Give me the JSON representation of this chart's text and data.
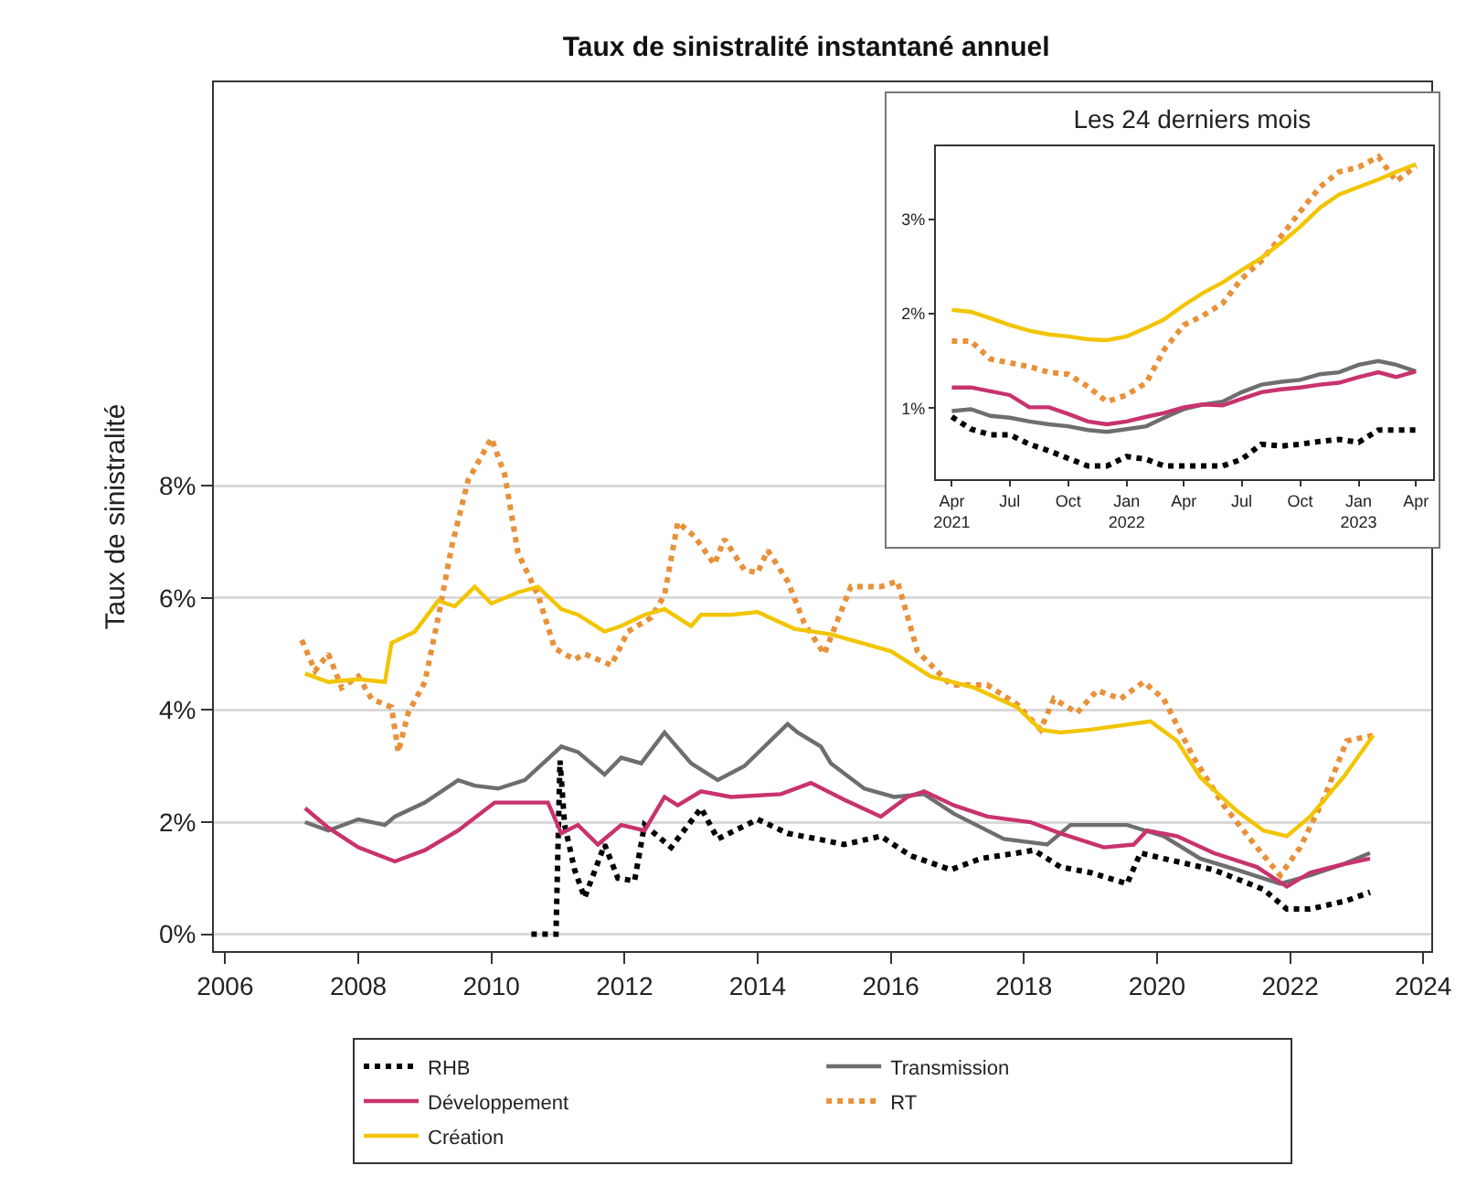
{
  "chart_data": [
    {
      "type": "line",
      "title": "Taux de sinistralité instantané annuel",
      "ylabel": "Taux de sinistralité",
      "xlim": [
        2005.83,
        2024.12
      ],
      "xticks": [
        2006,
        2008,
        2010,
        2012,
        2014,
        2016,
        2018,
        2020,
        2022,
        2024
      ],
      "ylim": [
        -0.3,
        15.2
      ],
      "yticks": [
        {
          "value": 0,
          "label": "0%"
        },
        {
          "value": 2,
          "label": "2%"
        },
        {
          "value": 4,
          "label": "4%"
        },
        {
          "value": 6,
          "label": "6%"
        },
        {
          "value": 8,
          "label": "8%"
        }
      ],
      "grid": "y",
      "legend": "bottom",
      "series": [
        {
          "name": "RHB",
          "color": "#000000",
          "line_style": "dotted",
          "x": [
            2010.6,
            2010.97,
            2011.03,
            2011.1,
            2011.25,
            2011.4,
            2011.7,
            2011.9,
            2012.15,
            2012.3,
            2012.7,
            2013.15,
            2013.4,
            2014.0,
            2014.45,
            2014.9,
            2015.3,
            2015.85,
            2016.3,
            2016.9,
            2017.35,
            2017.9,
            2018.15,
            2018.55,
            2019.0,
            2019.55,
            2019.75,
            2020.1,
            2020.85,
            2021.6,
            2021.95,
            2022.3,
            2022.85,
            2023.2
          ],
          "values": [
            0.0,
            0.0,
            3.1,
            1.95,
            1.15,
            0.65,
            1.6,
            1.0,
            0.95,
            1.95,
            1.55,
            2.25,
            1.7,
            2.05,
            1.8,
            1.7,
            1.6,
            1.75,
            1.4,
            1.15,
            1.35,
            1.45,
            1.5,
            1.2,
            1.1,
            0.9,
            1.45,
            1.35,
            1.15,
            0.8,
            0.45,
            0.45,
            0.6,
            0.75
          ]
        },
        {
          "name": "Transmission",
          "color": "#6e6e6e",
          "line_style": "solid",
          "x": [
            2007.2,
            2007.55,
            2008.0,
            2008.4,
            2008.55,
            2009.0,
            2009.5,
            2009.75,
            2010.1,
            2010.5,
            2011.05,
            2011.3,
            2011.7,
            2011.95,
            2012.25,
            2012.6,
            2013.0,
            2013.4,
            2013.8,
            2014.45,
            2014.6,
            2014.95,
            2015.1,
            2015.6,
            2016.05,
            2016.5,
            2016.95,
            2017.7,
            2018.35,
            2018.7,
            2019.55,
            2020.1,
            2020.65,
            2021.2,
            2021.85,
            2022.3,
            2022.8,
            2023.2
          ],
          "values": [
            2.0,
            1.85,
            2.05,
            1.95,
            2.1,
            2.35,
            2.75,
            2.65,
            2.6,
            2.75,
            3.35,
            3.25,
            2.85,
            3.15,
            3.05,
            3.6,
            3.05,
            2.75,
            3.0,
            3.75,
            3.6,
            3.35,
            3.05,
            2.6,
            2.45,
            2.5,
            2.15,
            1.7,
            1.6,
            1.95,
            1.95,
            1.75,
            1.35,
            1.15,
            0.9,
            1.05,
            1.25,
            1.45
          ]
        },
        {
          "name": "Développement",
          "color": "#c8336e",
          "line_style": "solid",
          "x": [
            2007.2,
            2007.55,
            2008.0,
            2008.55,
            2009.0,
            2009.5,
            2010.05,
            2010.85,
            2011.05,
            2011.3,
            2011.6,
            2011.95,
            2012.3,
            2012.6,
            2012.8,
            2013.15,
            2013.6,
            2014.35,
            2014.8,
            2015.3,
            2015.85,
            2016.25,
            2016.5,
            2016.95,
            2017.45,
            2018.1,
            2018.55,
            2019.2,
            2019.65,
            2019.85,
            2020.3,
            2020.85,
            2021.5,
            2021.95,
            2022.3,
            2022.8,
            2023.2
          ],
          "values": [
            2.25,
            1.9,
            1.55,
            1.3,
            1.5,
            1.85,
            2.35,
            2.35,
            1.8,
            1.95,
            1.6,
            1.95,
            1.85,
            2.45,
            2.3,
            2.55,
            2.45,
            2.5,
            2.7,
            2.4,
            2.1,
            2.45,
            2.55,
            2.3,
            2.1,
            2.0,
            1.8,
            1.55,
            1.6,
            1.85,
            1.75,
            1.45,
            1.2,
            0.85,
            1.1,
            1.25,
            1.35
          ]
        },
        {
          "name": "RT",
          "color": "#e8913a",
          "line_style": "dotted",
          "x": [
            2007.15,
            2007.35,
            2007.55,
            2007.75,
            2008.0,
            2008.2,
            2008.5,
            2008.6,
            2008.75,
            2009.0,
            2009.2,
            2009.4,
            2009.65,
            2010.0,
            2010.2,
            2010.4,
            2010.7,
            2010.95,
            2011.25,
            2011.4,
            2011.8,
            2012.05,
            2012.4,
            2012.6,
            2012.8,
            2013.05,
            2013.35,
            2013.5,
            2013.8,
            2014.0,
            2014.15,
            2014.45,
            2014.7,
            2015.0,
            2015.4,
            2015.85,
            2016.1,
            2016.4,
            2016.9,
            2017.45,
            2017.9,
            2018.25,
            2018.45,
            2018.8,
            2019.1,
            2019.45,
            2019.8,
            2020.1,
            2020.55,
            2021.0,
            2021.5,
            2021.85,
            2022.15,
            2022.5,
            2022.85,
            2023.25
          ],
          "values": [
            5.25,
            4.7,
            5.0,
            4.4,
            4.6,
            4.2,
            4.05,
            3.25,
            3.95,
            4.5,
            5.65,
            6.9,
            8.1,
            8.85,
            8.2,
            6.8,
            6.05,
            5.1,
            4.9,
            5.0,
            4.8,
            5.4,
            5.65,
            6.05,
            7.35,
            7.1,
            6.6,
            7.05,
            6.5,
            6.45,
            6.85,
            6.3,
            5.55,
            5.0,
            6.2,
            6.2,
            6.3,
            5.05,
            4.45,
            4.45,
            4.1,
            3.65,
            4.2,
            3.95,
            4.35,
            4.2,
            4.5,
            4.2,
            3.15,
            2.3,
            1.55,
            1.05,
            1.55,
            2.4,
            3.45,
            3.55
          ]
        },
        {
          "name": "Création",
          "color": "#f2c500",
          "line_style": "solid",
          "x": [
            2007.2,
            2007.55,
            2008.0,
            2008.4,
            2008.5,
            2008.85,
            2009.2,
            2009.45,
            2009.75,
            2010.0,
            2010.4,
            2010.7,
            2011.05,
            2011.3,
            2011.7,
            2011.95,
            2012.3,
            2012.6,
            2013.0,
            2013.15,
            2013.6,
            2014.0,
            2014.55,
            2015.1,
            2016.0,
            2016.6,
            2017.25,
            2017.9,
            2018.25,
            2018.55,
            2019.0,
            2019.9,
            2020.3,
            2020.65,
            2021.2,
            2021.6,
            2021.95,
            2022.3,
            2022.8,
            2023.25
          ],
          "values": [
            4.65,
            4.5,
            4.55,
            4.5,
            5.2,
            5.4,
            5.95,
            5.85,
            6.2,
            5.9,
            6.1,
            6.2,
            5.8,
            5.7,
            5.4,
            5.5,
            5.7,
            5.8,
            5.5,
            5.7,
            5.7,
            5.75,
            5.45,
            5.35,
            5.05,
            4.6,
            4.4,
            4.05,
            3.65,
            3.6,
            3.65,
            3.8,
            3.45,
            2.8,
            2.2,
            1.85,
            1.75,
            2.1,
            2.8,
            3.55
          ]
        }
      ]
    },
    {
      "type": "line",
      "title": "Les 24 derniers mois",
      "x": [
        "2021-04",
        "2021-05",
        "2021-06",
        "2021-07",
        "2021-08",
        "2021-09",
        "2021-10",
        "2021-11",
        "2021-12",
        "2022-01",
        "2022-02",
        "2022-03",
        "2022-04",
        "2022-05",
        "2022-06",
        "2022-07",
        "2022-08",
        "2022-09",
        "2022-10",
        "2022-11",
        "2022-12",
        "2023-01",
        "2023-02",
        "2023-03",
        "2023-04"
      ],
      "xlim": [
        "2021-03-07",
        "2023-04-28"
      ],
      "xticks": [
        {
          "value": "2021-04",
          "label": "Apr\n2021"
        },
        {
          "value": "2021-07",
          "label": "Jul"
        },
        {
          "value": "2021-10",
          "label": "Oct"
        },
        {
          "value": "2022-01",
          "label": "Jan\n2022"
        },
        {
          "value": "2022-04",
          "label": "Apr"
        },
        {
          "value": "2022-07",
          "label": "Jul"
        },
        {
          "value": "2022-10",
          "label": "Oct"
        },
        {
          "value": "2023-01",
          "label": "Jan\n2023"
        },
        {
          "value": "2023-04",
          "label": "Apr"
        }
      ],
      "ylim": [
        0.25,
        3.77
      ],
      "yticks": [
        {
          "value": 1,
          "label": "1%"
        },
        {
          "value": 2,
          "label": "2%"
        },
        {
          "value": 3,
          "label": "3%"
        }
      ],
      "series": [
        {
          "color": "#000000",
          "line_style": "dotted",
          "values": [
            0.91,
            0.78,
            0.72,
            0.72,
            0.62,
            0.55,
            0.47,
            0.39,
            0.39,
            0.49,
            0.46,
            0.39,
            0.39,
            0.39,
            0.39,
            0.46,
            0.62,
            0.6,
            0.62,
            0.65,
            0.67,
            0.64,
            0.77,
            0.77,
            0.77
          ]
        },
        {
          "color": "#6e6e6e",
          "line_style": "solid",
          "values": [
            0.97,
            0.99,
            0.92,
            0.9,
            0.86,
            0.83,
            0.81,
            0.77,
            0.75,
            0.78,
            0.81,
            0.9,
            0.99,
            1.04,
            1.07,
            1.17,
            1.25,
            1.28,
            1.3,
            1.36,
            1.38,
            1.46,
            1.5,
            1.46,
            1.39
          ]
        },
        {
          "color": "#c8336e",
          "line_style": "solid",
          "values": [
            1.22,
            1.22,
            1.18,
            1.14,
            1.01,
            1.01,
            0.94,
            0.86,
            0.83,
            0.86,
            0.91,
            0.95,
            1.01,
            1.04,
            1.03,
            1.1,
            1.17,
            1.2,
            1.22,
            1.25,
            1.27,
            1.33,
            1.38,
            1.33,
            1.39
          ]
        },
        {
          "color": "#e8913a",
          "line_style": "dotted",
          "values": [
            1.71,
            1.71,
            1.52,
            1.48,
            1.44,
            1.38,
            1.36,
            1.23,
            1.07,
            1.14,
            1.27,
            1.62,
            1.88,
            1.98,
            2.11,
            2.37,
            2.56,
            2.82,
            3.08,
            3.34,
            3.5,
            3.55,
            3.66,
            3.4,
            3.56
          ]
        },
        {
          "color": "#f2c500",
          "line_style": "solid",
          "values": [
            2.04,
            2.02,
            1.95,
            1.88,
            1.82,
            1.78,
            1.76,
            1.73,
            1.72,
            1.76,
            1.85,
            1.94,
            2.09,
            2.22,
            2.33,
            2.46,
            2.59,
            2.75,
            2.92,
            3.12,
            3.26,
            3.34,
            3.42,
            3.5,
            3.58
          ]
        }
      ]
    }
  ]
}
